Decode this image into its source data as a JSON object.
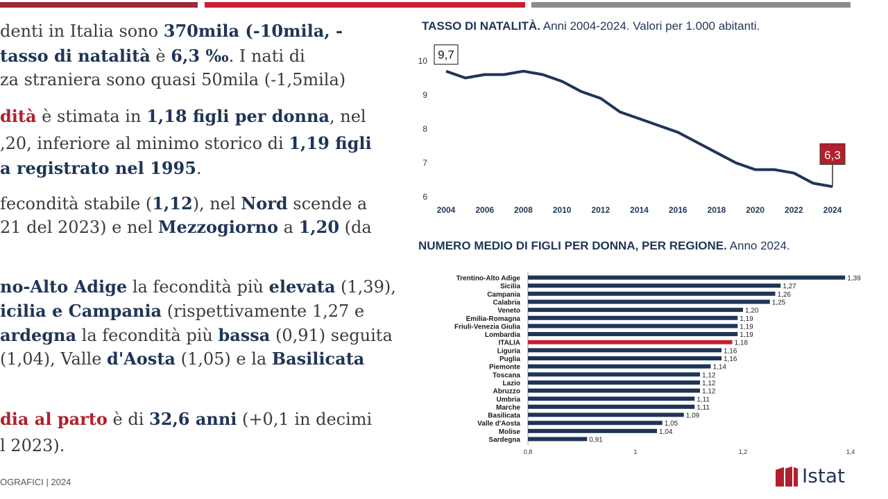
{
  "slide": {
    "paragraphs": [
      {
        "runs": [
          {
            "t": "denti in Italia sono ",
            "s": "n"
          },
          {
            "t": "370mila (-10mila, -",
            "s": "b"
          }
        ]
      },
      {
        "runs": [
          {
            "t": "tasso di natalità",
            "s": "b"
          },
          {
            "t": " è ",
            "s": "n"
          },
          {
            "t": "6,3 ‰",
            "s": "b"
          },
          {
            "t": ". I nati di",
            "s": "n"
          }
        ]
      },
      {
        "runs": [
          {
            "t": "za straniera  sono quasi 50mila (-1,5mila)",
            "s": "n"
          }
        ]
      },
      {
        "runs": [
          {
            "t": "dità",
            "s": "r"
          },
          {
            "t": " è stimata in ",
            "s": "n"
          },
          {
            "t": "1,18 figli per donna",
            "s": "b"
          },
          {
            "t": ", nel",
            "s": "n"
          }
        ]
      },
      {
        "runs": [
          {
            "t": ",20, inferiore al minimo storico di ",
            "s": "n"
          },
          {
            "t": "1,19 figli",
            "s": "b"
          }
        ]
      },
      {
        "runs": [
          {
            "t": "a registrato nel 1995",
            "s": "b"
          },
          {
            "t": ".",
            "s": "n"
          }
        ]
      },
      {
        "runs": [
          {
            "t": " fecondità stabile (",
            "s": "n"
          },
          {
            "t": "1,12",
            "s": "b"
          },
          {
            "t": "), nel ",
            "s": "n"
          },
          {
            "t": "Nord",
            "s": "b"
          },
          {
            "t": " scende a",
            "s": "n"
          }
        ]
      },
      {
        "runs": [
          {
            "t": "21 del 2023) e nel ",
            "s": "n"
          },
          {
            "t": "Mezzogiorno",
            "s": "b"
          },
          {
            "t": " a ",
            "s": "n"
          },
          {
            "t": "1,20",
            "s": "b"
          },
          {
            "t": " (da",
            "s": "n"
          }
        ]
      },
      {
        "runs": [
          {
            "t": "no-Alto Adige",
            "s": "b"
          },
          {
            "t": " la fecondità più ",
            "s": "n"
          },
          {
            "t": "elevata",
            "s": "b"
          },
          {
            "t": " (1,39),",
            "s": "n"
          }
        ]
      },
      {
        "runs": [
          {
            "t": "icilia e Campania",
            "s": "b"
          },
          {
            "t": " (rispettivamente 1,27 e",
            "s": "n"
          }
        ]
      },
      {
        "runs": [
          {
            "t": "ardegna",
            "s": "b"
          },
          {
            "t": " la fecondità più ",
            "s": "n"
          },
          {
            "t": "bassa",
            "s": "b"
          },
          {
            "t": " (0,91) seguita",
            "s": "n"
          }
        ]
      },
      {
        "runs": [
          {
            "t": " (1,04), Valle ",
            "s": "n"
          },
          {
            "t": "d'Aosta",
            "s": "b"
          },
          {
            "t": " (1,05) e la ",
            "s": "n"
          },
          {
            "t": "Basilicata",
            "s": "b"
          }
        ]
      },
      {
        "runs": [
          {
            "t": "dia al parto",
            "s": "r"
          },
          {
            "t": " è di ",
            "s": "n"
          },
          {
            "t": "32,6 anni",
            "s": "b"
          },
          {
            "t": " (+0,1 in decimi",
            "s": "n"
          }
        ]
      },
      {
        "runs": [
          {
            "t": "l 2023).",
            "s": "n"
          }
        ]
      }
    ],
    "footer": "OGRAFICI | 2024",
    "logo_text": "Istat"
  },
  "colors": {
    "navy": "#1f3556",
    "red": "#b21f2d",
    "accent": "#c8202f",
    "grey": "#8c8c8c"
  },
  "chart_data": [
    {
      "type": "line",
      "title": "TASSO DI NATALITÀ.",
      "subtitle": "Anni 2004-2024. Valori per 1.000 abitanti.",
      "x": [
        2004,
        2005,
        2006,
        2007,
        2008,
        2009,
        2010,
        2011,
        2012,
        2013,
        2014,
        2015,
        2016,
        2017,
        2018,
        2019,
        2020,
        2021,
        2022,
        2023,
        2024
      ],
      "xticks": [
        "2004",
        "2006",
        "2008",
        "2010",
        "2012",
        "2014",
        "2016",
        "2018",
        "2020",
        "2022",
        "2024"
      ],
      "values": [
        9.7,
        9.5,
        9.6,
        9.6,
        9.7,
        9.6,
        9.4,
        9.1,
        8.9,
        8.5,
        8.3,
        8.1,
        7.9,
        7.6,
        7.3,
        7.0,
        6.8,
        6.8,
        6.7,
        6.4,
        6.3
      ],
      "yticks": [
        "6",
        "7",
        "8",
        "9",
        "10"
      ],
      "ylim": [
        6,
        10
      ],
      "annotations": [
        {
          "year": 2004,
          "label": "9,7"
        },
        {
          "year": 2024,
          "label": "6,3"
        }
      ]
    },
    {
      "type": "bar",
      "orientation": "horizontal",
      "title": "NUMERO MEDIO DI FIGLI PER DONNA, PER REGIONE.",
      "subtitle": "Anno 2024.",
      "categories": [
        "Trentino-Alto Adige",
        "Sicilia",
        "Campania",
        "Calabria",
        "Veneto",
        "Emilia-Romagna",
        "Friuli-Venezia Giulia",
        "Lombardia",
        "ITALIA",
        "Liguria",
        "Puglia",
        "Piemonte",
        "Toscana",
        "Lazio",
        "Abruzzo",
        "Umbria",
        "Marche",
        "Basilicata",
        "Valle d'Aosta",
        "Molise",
        "Sardegna"
      ],
      "values": [
        1.39,
        1.27,
        1.26,
        1.25,
        1.2,
        1.19,
        1.19,
        1.19,
        1.18,
        1.16,
        1.16,
        1.14,
        1.12,
        1.12,
        1.12,
        1.11,
        1.11,
        1.09,
        1.05,
        1.04,
        0.91
      ],
      "labels": [
        "1,39",
        "1,27",
        "1,26",
        "1,25",
        "1,20",
        "1,19",
        "1,19",
        "1,19",
        "1,18",
        "1,16",
        "1,16",
        "1,14",
        "1,12",
        "1,12",
        "1,12",
        "1,11",
        "1,11",
        "1,09",
        "1,05",
        "1,04",
        "0,91"
      ],
      "highlight": "ITALIA",
      "xticks": [
        "0,8",
        "1",
        "1,2",
        "1,4"
      ],
      "xlim": [
        0.8,
        1.4
      ]
    }
  ]
}
